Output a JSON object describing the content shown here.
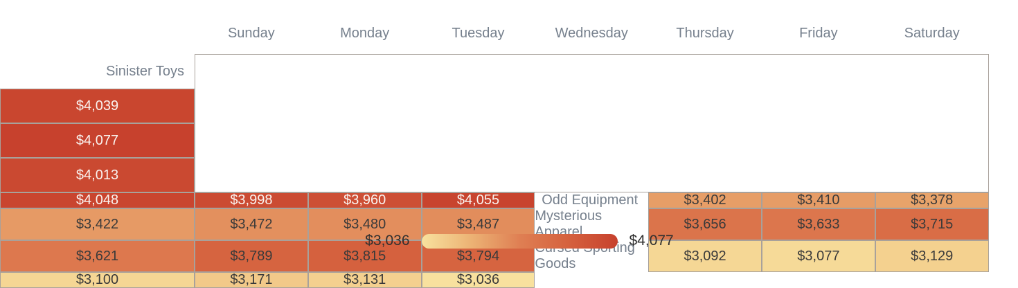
{
  "chart_data": {
    "type": "heatmap",
    "title": "",
    "columns": [
      "Sunday",
      "Monday",
      "Tuesday",
      "Wednesday",
      "Thursday",
      "Friday",
      "Saturday"
    ],
    "rows": [
      {
        "label": "Sinister Toys",
        "values": [
          4039,
          4077,
          4013,
          4048,
          3998,
          3960,
          4055
        ]
      },
      {
        "label": "Odd Equipment",
        "values": [
          3402,
          3410,
          3378,
          3422,
          3472,
          3480,
          3487
        ]
      },
      {
        "label": "Mysterious Apparel",
        "values": [
          3656,
          3633,
          3715,
          3621,
          3789,
          3815,
          3794
        ]
      },
      {
        "label": "Cursed Sporting Goods",
        "values": [
          3092,
          3077,
          3129,
          3100,
          3171,
          3131,
          3036
        ]
      }
    ],
    "value_prefix": "$",
    "min": 3036,
    "max": 4077,
    "legend": {
      "min_label": "$3,036",
      "max_label": "$4,077"
    },
    "colors": {
      "scale_stops": [
        "#F8E19E",
        "#ECB375",
        "#DF7F53",
        "#D5613E",
        "#C7412D"
      ],
      "header_text": "#76808D",
      "dark_cell_text": "#3A3A3A",
      "light_cell_text": "#FAF3EF",
      "cell_border": "#A8A19B"
    }
  }
}
